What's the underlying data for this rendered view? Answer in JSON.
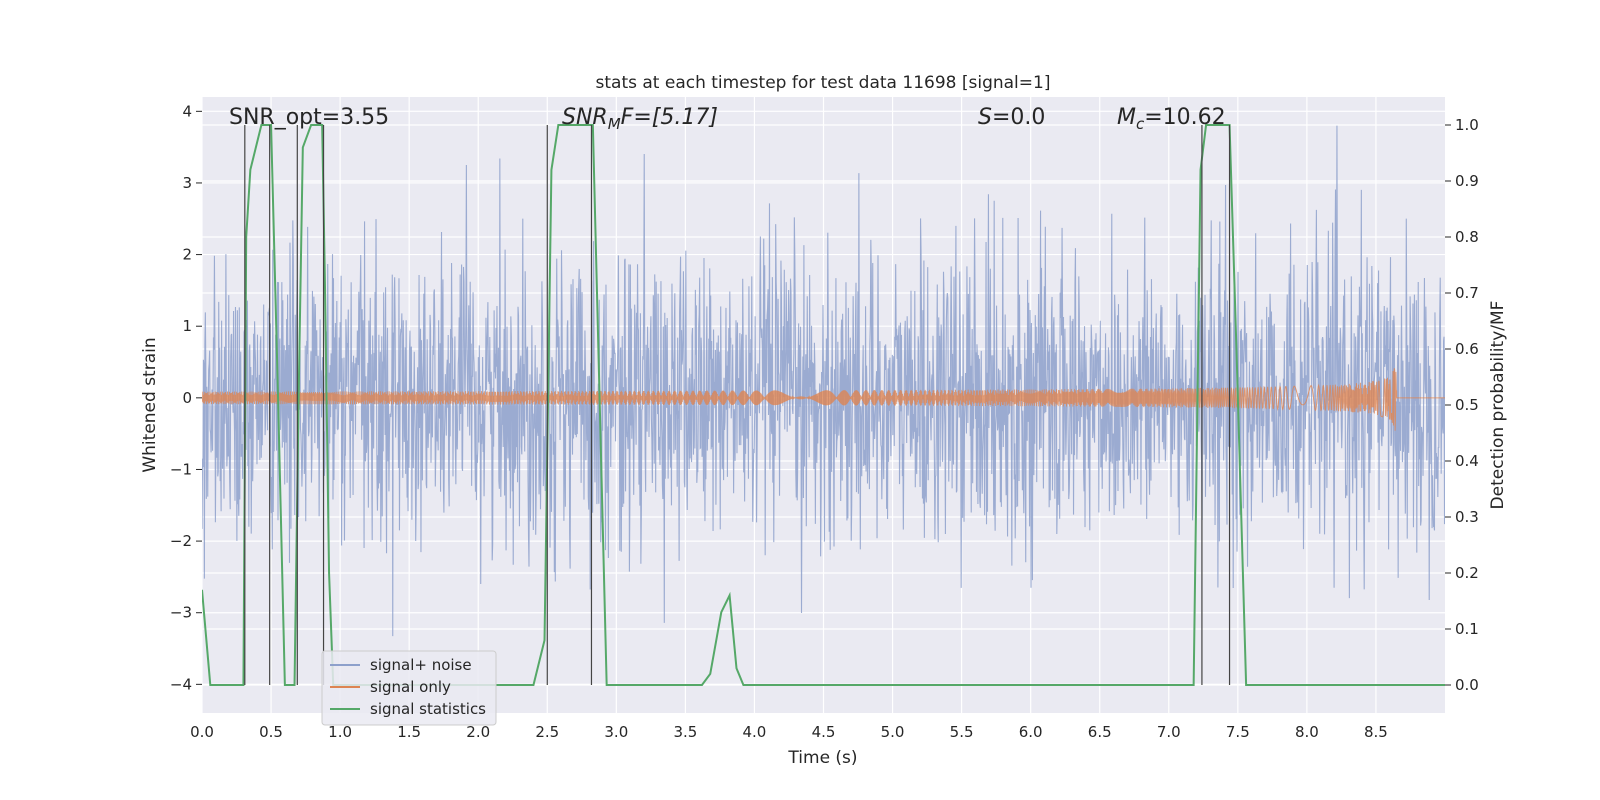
{
  "chart_data": {
    "type": "line",
    "title": "stats at each timestep for test data 11698 [signal=1]",
    "xlabel": "Time (s)",
    "ylabel_left": "Whitened strain",
    "ylabel_right": "Detection probability/MF",
    "xlim": [
      0.0,
      9.0
    ],
    "ylim_left": [
      -4.4,
      4.2
    ],
    "ylim_right": [
      -0.05,
      1.05
    ],
    "x_ticks": [
      "0.0",
      "0.5",
      "1.0",
      "1.5",
      "2.0",
      "2.5",
      "3.0",
      "3.5",
      "4.0",
      "4.5",
      "5.0",
      "5.5",
      "6.0",
      "6.5",
      "7.0",
      "7.5",
      "8.0",
      "8.5"
    ],
    "y_left_ticks": [
      "-4",
      "-3",
      "-2",
      "-1",
      "0",
      "1",
      "2",
      "3",
      "4"
    ],
    "y_right_ticks": [
      "0.0",
      "0.1",
      "0.2",
      "0.3",
      "0.4",
      "0.5",
      "0.6",
      "0.7",
      "0.8",
      "0.9",
      "1.0"
    ],
    "grid": true,
    "legend_position": "lower-left",
    "annotations": {
      "snr_opt": "SNR_opt=3.55",
      "snr_mf_base": "SNR",
      "snr_mf_sub": "M",
      "snr_mf_rest": "F=[5.17]",
      "s_base": "S",
      "s_rest": "=0.0",
      "mc_base": "M",
      "mc_sub": "c",
      "mc_rest": "=10.62"
    },
    "series": [
      {
        "name": "signal+ noise",
        "color": "#8da0cb",
        "description_kind": "noise",
        "typical_amplitude": 1.0,
        "peak_amplitude": 3.8
      },
      {
        "name": "signal only",
        "color": "#dd8452",
        "envelope": {
          "start_time": 0.0,
          "merger_time": 8.65,
          "peak_amplitude": 0.6
        }
      },
      {
        "name": "signal statistics",
        "color": "#55a868",
        "axis": "right",
        "points": [
          [
            0.0,
            0.17
          ],
          [
            0.06,
            0.0
          ],
          [
            0.1,
            0.0
          ],
          [
            0.3,
            0.0
          ],
          [
            0.32,
            0.8
          ],
          [
            0.35,
            0.92
          ],
          [
            0.43,
            1.0
          ],
          [
            0.5,
            1.0
          ],
          [
            0.55,
            0.52
          ],
          [
            0.6,
            0.0
          ],
          [
            0.67,
            0.0
          ],
          [
            0.7,
            0.52
          ],
          [
            0.73,
            0.96
          ],
          [
            0.79,
            1.0
          ],
          [
            0.87,
            1.0
          ],
          [
            0.89,
            0.72
          ],
          [
            0.92,
            0.2
          ],
          [
            0.95,
            0.0
          ],
          [
            1.0,
            0.0
          ],
          [
            2.4,
            0.0
          ],
          [
            2.48,
            0.08
          ],
          [
            2.53,
            0.92
          ],
          [
            2.58,
            1.0
          ],
          [
            2.83,
            1.0
          ],
          [
            2.88,
            0.5
          ],
          [
            2.93,
            0.0
          ],
          [
            3.0,
            0.0
          ],
          [
            3.62,
            0.0
          ],
          [
            3.68,
            0.02
          ],
          [
            3.76,
            0.13
          ],
          [
            3.82,
            0.16
          ],
          [
            3.87,
            0.03
          ],
          [
            3.92,
            0.0
          ],
          [
            4.0,
            0.0
          ],
          [
            7.18,
            0.0
          ],
          [
            7.23,
            0.92
          ],
          [
            7.27,
            1.0
          ],
          [
            7.44,
            1.0
          ],
          [
            7.49,
            0.6
          ],
          [
            7.56,
            0.0
          ],
          [
            8.0,
            0.0
          ],
          [
            9.0,
            0.0
          ]
        ],
        "vertical_markers": [
          0.31,
          0.49,
          0.69,
          0.88,
          2.5,
          2.82,
          7.24,
          7.44
        ]
      }
    ]
  }
}
